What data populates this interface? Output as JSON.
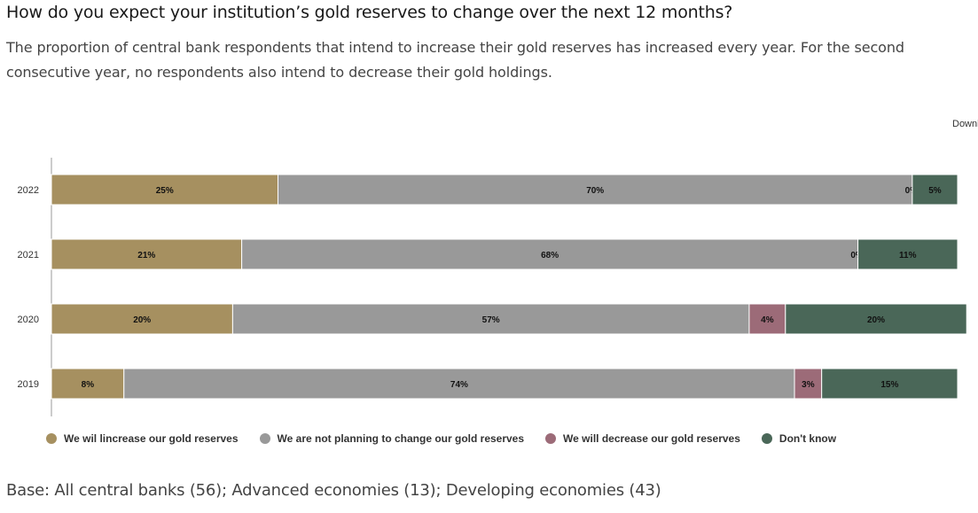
{
  "header": {
    "title": "How do you expect your institution’s gold reserves to change over the next 12 months?",
    "subtitle": "The proportion of central bank respondents that intend to increase their gold reserves has increased every year. For the second consecutive year, no respondents also intend to decrease their gold holdings."
  },
  "menu": {
    "icon": "hamburger-menu-icon",
    "label": "Download"
  },
  "footnote": "Base: All central banks (56); Advanced economies (13); Developing economies (43)",
  "chart_data": {
    "type": "bar",
    "orientation": "horizontal",
    "stacked": true,
    "categories": [
      "2022",
      "2021",
      "2020",
      "2019"
    ],
    "series": [
      {
        "name": "We wil lincrease our gold reserves",
        "color": "#a69060",
        "values": [
          25,
          21,
          20,
          8
        ],
        "labels": [
          "25%",
          "21%",
          "20%",
          "8%"
        ]
      },
      {
        "name": "We are not planning to change our gold reserves",
        "color": "#999999",
        "values": [
          70,
          68,
          57,
          74
        ],
        "labels": [
          "70%",
          "68%",
          "57%",
          "74%"
        ]
      },
      {
        "name": "We will decrease our gold reserves",
        "color": "#9c6b78",
        "values": [
          0,
          0,
          4,
          3
        ],
        "labels": [
          "0%",
          "0%",
          "4%",
          "3%"
        ]
      },
      {
        "name": "Don't know",
        "color": "#4a6758",
        "values": [
          5,
          11,
          20,
          15
        ],
        "labels": [
          "5%",
          "11%",
          "20%",
          "15%"
        ]
      }
    ],
    "xlim": [
      0,
      100
    ],
    "grid": false,
    "legend_position": "bottom-left"
  }
}
